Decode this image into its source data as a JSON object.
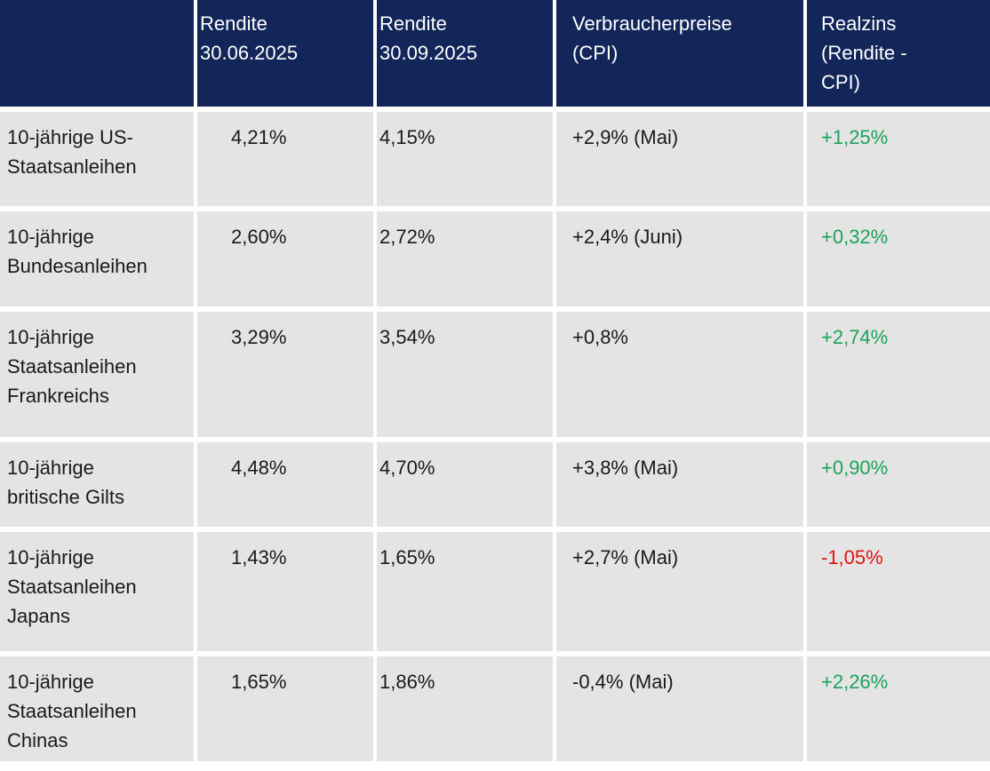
{
  "colors": {
    "header_bg": "#12265a",
    "header_text": "#ffffff",
    "row_bg": "#e4e4e4",
    "body_text": "#1a1a1a",
    "positive": "#1aa35a",
    "negative": "#e01212",
    "gap": "#ffffff"
  },
  "chart_data": {
    "type": "table",
    "columns": [
      "",
      "Rendite 30.06.2025",
      "Rendite 30.09.2025",
      "Verbraucherpreise (CPI)",
      "Realzins (Rendite - CPI)"
    ],
    "rows": [
      [
        "10-jährige US-Staatsanleihen",
        "4,21%",
        "4,15%",
        "+2,9% (Mai)",
        "+1,25%"
      ],
      [
        "10-jährige Bundesanleihen",
        "2,60%",
        "2,72%",
        "+2,4% (Juni)",
        "+0,32%"
      ],
      [
        "10-jährige Staatsanleihen Frankreichs",
        "3,29%",
        "3,54%",
        "+0,8%",
        "+2,74%"
      ],
      [
        "10-jährige britische Gilts",
        "4,48%",
        "4,70%",
        "+3,8% (Mai)",
        "+0,90%"
      ],
      [
        "10-jährige Staatsanleihen Japans",
        "1,43%",
        "1,65%",
        "+2,7% (Mai)",
        "-1,05%"
      ],
      [
        "10-jährige Staatsanleihen Chinas",
        "1,65%",
        "1,86%",
        "-0,4% (Mai)",
        "+2,26%"
      ]
    ],
    "realzins_signs": [
      "positive",
      "positive",
      "positive",
      "positive",
      "negative",
      "positive"
    ]
  },
  "table": {
    "header": {
      "corner": "",
      "rendite_jun": "Rendite\n30.06.2025",
      "rendite_sep": "Rendite\n30.09.2025",
      "cpi": "Verbraucherpreise\n(CPI)",
      "realzins": "Realzins\n(Rendite -\nCPI)"
    },
    "rows": [
      {
        "label": "10-jährige US-\nStaatsanleihen",
        "rendite_jun": "4,21%",
        "rendite_sep": "4,15%",
        "cpi": "+2,9% (Mai)",
        "realzins": "+1,25%",
        "realzins_color": "green"
      },
      {
        "label": "10-jährige\nBundesanleihen",
        "rendite_jun": "2,60%",
        "rendite_sep": "2,72%",
        "cpi": "+2,4% (Juni)",
        "realzins": "+0,32%",
        "realzins_color": "green"
      },
      {
        "label": "10-jährige\nStaatsanleihen\nFrankreichs",
        "rendite_jun": "3,29%",
        "rendite_sep": "3,54%",
        "cpi": "+0,8%",
        "realzins": "+2,74%",
        "realzins_color": "green"
      },
      {
        "label": "10-jährige\nbritische Gilts",
        "rendite_jun": "4,48%",
        "rendite_sep": "4,70%",
        "cpi": "+3,8% (Mai)",
        "realzins": "+0,90%",
        "realzins_color": "green"
      },
      {
        "label": "10-jährige\nStaatsanleihen\nJapans",
        "rendite_jun": "1,43%",
        "rendite_sep": "1,65%",
        "cpi": "+2,7% (Mai)",
        "realzins": "-1,05%",
        "realzins_color": "red"
      },
      {
        "label": "10-jährige\nStaatsanleihen\nChinas",
        "rendite_jun": "1,65%",
        "rendite_sep": "1,86%",
        "cpi": "-0,4% (Mai)",
        "realzins": "+2,26%",
        "realzins_color": "green"
      }
    ]
  }
}
